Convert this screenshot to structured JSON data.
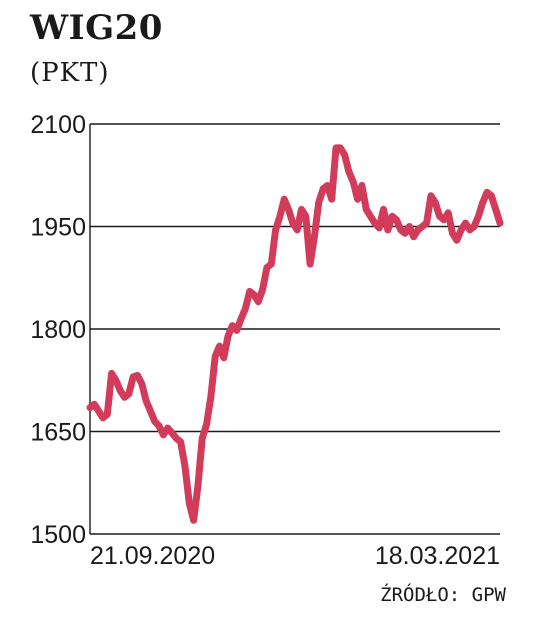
{
  "chart_data": {
    "type": "line",
    "title": "WIG20",
    "subtitle": "(PKT)",
    "source": "ŹRÓDŁO: GPW",
    "ylim": [
      1500,
      2100
    ],
    "y_ticks": [
      1500,
      1650,
      1800,
      1950,
      2100
    ],
    "y_tick_labels": [
      "1500",
      "1650",
      "1800",
      "1950",
      "2100"
    ],
    "x_tick_labels": [
      "21.09.2020",
      "18.03.2021"
    ],
    "grid": "horizontal",
    "line_color": "#d23c5a",
    "series": [
      {
        "values": [
          1685,
          1690,
          1680,
          1670,
          1675,
          1735,
          1725,
          1710,
          1700,
          1705,
          1730,
          1732,
          1720,
          1695,
          1680,
          1665,
          1658,
          1645,
          1655,
          1648,
          1640,
          1635,
          1600,
          1545,
          1520,
          1570,
          1640,
          1660,
          1700,
          1760,
          1775,
          1758,
          1790,
          1805,
          1798,
          1815,
          1830,
          1855,
          1850,
          1840,
          1858,
          1890,
          1895,
          1945,
          1965,
          1990,
          1975,
          1955,
          1945,
          1975,
          1965,
          1895,
          1935,
          1985,
          2005,
          2010,
          1990,
          2065,
          2065,
          2055,
          2030,
          2015,
          1990,
          2010,
          1975,
          1965,
          1955,
          1948,
          1975,
          1945,
          1965,
          1960,
          1945,
          1940,
          1950,
          1935,
          1945,
          1950,
          1955,
          1995,
          1985,
          1965,
          1960,
          1970,
          1940,
          1930,
          1945,
          1955,
          1945,
          1950,
          1965,
          1985,
          2000,
          1995,
          1975,
          1955
        ]
      }
    ]
  }
}
